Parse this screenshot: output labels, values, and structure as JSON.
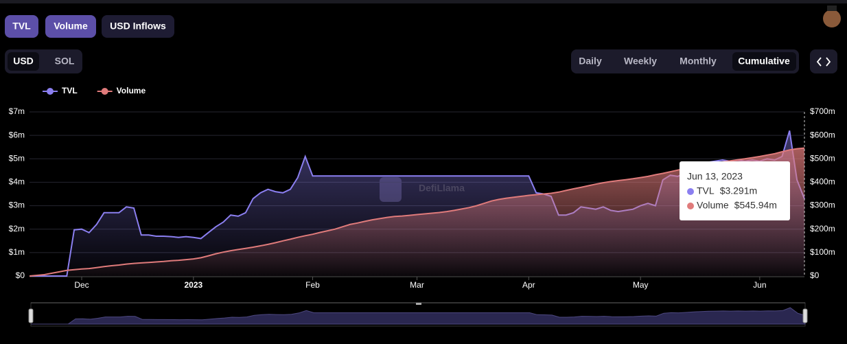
{
  "controls": {
    "metrics": [
      "TVL",
      "Volume",
      "USD Inflows"
    ],
    "currency": [
      "USD",
      "SOL"
    ],
    "periods": [
      "Daily",
      "Weekly",
      "Monthly",
      "Cumulative"
    ]
  },
  "watermark": "DefiLlama",
  "chart_data": {
    "type": "line",
    "categories": [
      null,
      null,
      null,
      null,
      null,
      null,
      null,
      "Dec",
      null,
      null,
      null,
      null,
      null,
      null,
      null,
      null,
      null,
      null,
      null,
      null,
      null,
      null,
      "2023",
      null,
      null,
      null,
      null,
      null,
      null,
      null,
      null,
      null,
      null,
      null,
      null,
      null,
      null,
      null,
      "Feb",
      null,
      null,
      null,
      null,
      null,
      null,
      null,
      null,
      null,
      null,
      null,
      null,
      null,
      "Mar",
      null,
      null,
      null,
      null,
      null,
      null,
      null,
      null,
      null,
      null,
      null,
      null,
      null,
      null,
      "Apr",
      null,
      null,
      null,
      null,
      null,
      null,
      null,
      null,
      null,
      null,
      null,
      null,
      null,
      null,
      "May",
      null,
      null,
      null,
      null,
      null,
      null,
      null,
      null,
      null,
      null,
      null,
      null,
      null,
      null,
      null,
      "Jun",
      null,
      null,
      null,
      null,
      null,
      null
    ],
    "series": [
      {
        "name": "TVL",
        "color": "#8b7ff0",
        "axis": "y",
        "values": [
          0,
          0,
          0,
          0,
          0,
          0,
          1.97,
          2.0,
          1.85,
          2.2,
          2.7,
          2.7,
          2.7,
          2.95,
          2.9,
          1.75,
          1.75,
          1.7,
          1.7,
          1.68,
          1.65,
          1.68,
          1.65,
          1.6,
          1.85,
          2.1,
          2.3,
          2.6,
          2.55,
          2.7,
          3.3,
          3.55,
          3.7,
          3.6,
          3.55,
          3.7,
          4.2,
          5.1,
          4.27,
          4.27,
          4.27,
          4.27,
          4.27,
          4.27,
          4.27,
          4.27,
          4.27,
          4.27,
          4.27,
          4.27,
          4.27,
          4.27,
          4.27,
          4.27,
          4.27,
          4.27,
          4.27,
          4.27,
          4.27,
          4.27,
          4.27,
          4.27,
          4.27,
          4.27,
          4.27,
          4.27,
          4.27,
          4.27,
          3.55,
          3.5,
          3.4,
          2.6,
          2.6,
          2.7,
          2.95,
          2.9,
          2.85,
          2.95,
          2.8,
          2.75,
          2.8,
          2.85,
          3.0,
          3.1,
          3.0,
          4.1,
          4.3,
          4.25,
          4.4,
          4.6,
          4.75,
          4.85,
          4.9,
          4.95,
          4.9,
          4.95,
          4.9,
          4.95,
          4.9,
          5.0,
          4.95,
          5.1,
          6.2,
          4.1,
          3.291
        ]
      },
      {
        "name": "Volume",
        "color": "#e07b7b",
        "axis": "y2",
        "values": [
          0,
          3,
          6,
          12,
          18,
          24,
          27,
          30,
          32,
          36,
          40,
          44,
          47,
          51,
          54,
          56,
          58,
          60,
          62,
          65,
          67,
          70,
          73,
          78,
          86,
          95,
          102,
          108,
          113,
          118,
          123,
          129,
          135,
          142,
          150,
          157,
          165,
          172,
          178,
          186,
          193,
          200,
          210,
          220,
          226,
          233,
          240,
          245,
          250,
          254,
          256,
          259,
          262,
          265,
          268,
          271,
          275,
          280,
          286,
          292,
          300,
          310,
          320,
          327,
          332,
          336,
          340,
          344,
          347,
          350,
          353,
          358,
          365,
          372,
          378,
          385,
          392,
          398,
          403,
          407,
          411,
          415,
          420,
          425,
          432,
          438,
          445,
          452,
          458,
          464,
          470,
          476,
          481,
          487,
          491,
          496,
          500,
          505,
          510,
          516,
          522,
          530,
          538,
          543,
          545.94
        ]
      }
    ],
    "ylim": [
      0,
      7
    ],
    "yticks": [
      {
        "value": 0,
        "label": "$0"
      },
      {
        "value": 1,
        "label": "$1m"
      },
      {
        "value": 2,
        "label": "$2m"
      },
      {
        "value": 3,
        "label": "$3m"
      },
      {
        "value": 4,
        "label": "$4m"
      },
      {
        "value": 5,
        "label": "$5m"
      },
      {
        "value": 6,
        "label": "$6m"
      },
      {
        "value": 7,
        "label": "$7m"
      }
    ],
    "y2lim": [
      0,
      700
    ],
    "y2ticks": [
      {
        "value": 0,
        "label": "$0"
      },
      {
        "value": 100,
        "label": "$100m"
      },
      {
        "value": 200,
        "label": "$200m"
      },
      {
        "value": 300,
        "label": "$300m"
      },
      {
        "value": 400,
        "label": "$400m"
      },
      {
        "value": 500,
        "label": "$500m"
      },
      {
        "value": 600,
        "label": "$600m"
      },
      {
        "value": 700,
        "label": "$700m"
      }
    ],
    "grid": true,
    "legend": "top-left",
    "tooltip": {
      "label": "Jun 13, 2023",
      "values": [
        "$3.291m",
        "$545.94m"
      ]
    }
  }
}
